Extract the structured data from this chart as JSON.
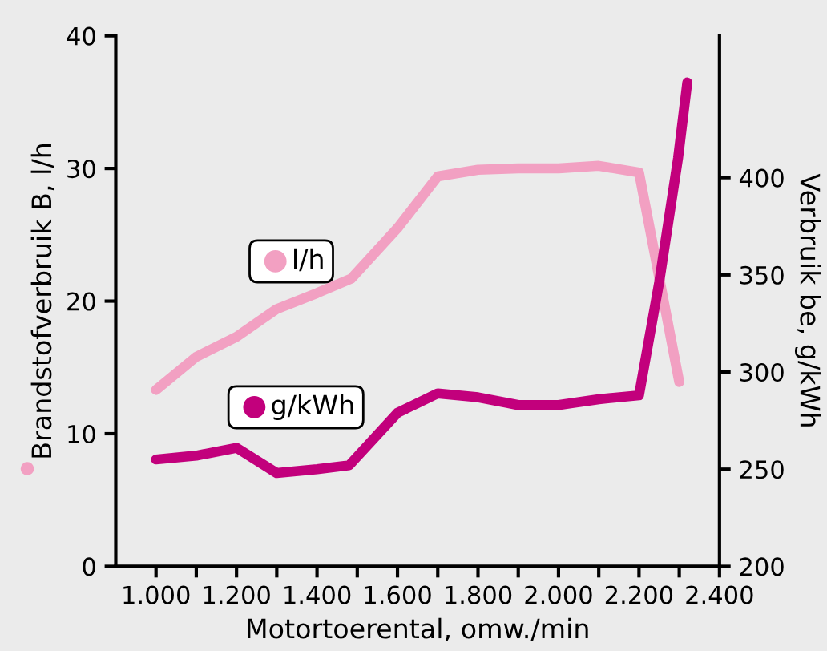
{
  "chart_data": {
    "type": "line",
    "xlabel": "Motortoerental, omw./min",
    "ylabel": "Brandstofverbruik B, l/h",
    "y2label": "Verbruik be, g/kWh",
    "series": [
      {
        "name": "l/h",
        "color": "#f2a0c2",
        "x": [
          1000,
          1100,
          1200,
          1300,
          1400,
          1485,
          1600,
          1700,
          1800,
          1900,
          2000,
          2100,
          2200,
          2300
        ],
        "values": [
          13.3,
          15.8,
          17.3,
          19.4,
          20.6,
          21.7,
          25.5,
          29.4,
          29.9,
          30,
          30,
          30.2,
          29.7,
          13.9
        ]
      },
      {
        "name": "g/kWh",
        "color": "#c2007c",
        "axis": "y2",
        "x": [
          1000,
          1100,
          1200,
          1300,
          1400,
          1480,
          1600,
          1700,
          1800,
          1900,
          2000,
          2100,
          2200,
          2250,
          2297,
          2320
        ],
        "values": [
          255,
          257,
          261,
          248,
          250,
          252,
          279,
          289,
          287,
          283,
          283,
          286,
          288,
          346,
          410,
          449
        ]
      }
    ],
    "xlim": [
      900,
      2400
    ],
    "xticks": [
      {
        "value": 1000,
        "label": "1.000"
      },
      {
        "value": 1100,
        "label": null
      },
      {
        "value": 1200,
        "label": "1.200"
      },
      {
        "value": 1300,
        "label": null
      },
      {
        "value": 1400,
        "label": "1.400"
      },
      {
        "value": 1500,
        "label": null
      },
      {
        "value": 1600,
        "label": "1.600"
      },
      {
        "value": 1700,
        "label": null
      },
      {
        "value": 1800,
        "label": "1.800"
      },
      {
        "value": 1900,
        "label": null
      },
      {
        "value": 2000,
        "label": "2.000"
      },
      {
        "value": 2100,
        "label": null
      },
      {
        "value": 2200,
        "label": "2.200"
      },
      {
        "value": 2300,
        "label": null
      },
      {
        "value": 2400,
        "label": "2.400"
      }
    ],
    "ylim": [
      0,
      40
    ],
    "yticks": [
      0,
      10,
      20,
      30,
      40
    ],
    "y2lim": [
      200,
      473
    ],
    "y2ticks": [
      200,
      250,
      300,
      350,
      400
    ],
    "grid": false,
    "legend": "left",
    "marker": "none",
    "line_style": "solid"
  }
}
